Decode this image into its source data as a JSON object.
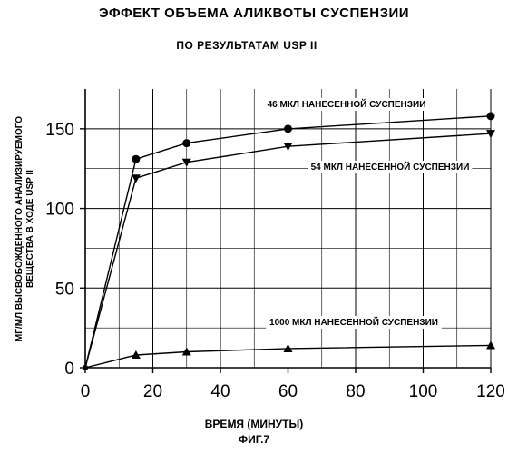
{
  "chart_data": {
    "type": "line",
    "title": "ЭФФЕКТ ОБЪЕМА АЛИКВОТЫ СУСПЕНЗИИ",
    "subtitle": "ПО РЕЗУЛЬТАТАМ USP II",
    "xlabel": "ВРЕМЯ (МИНУТЫ)",
    "ylabel_lines": [
      "МГ/МЛ ВЫСВОБОЖДЕННОГО АНАЛИЗИРУЕМОГО",
      "ВЕЩЕСТВА В ХОДЕ USP II"
    ],
    "figure_label": "ФИГ.7",
    "xlim": [
      0,
      120
    ],
    "ylim": [
      0,
      175
    ],
    "x_ticks": [
      0,
      20,
      40,
      60,
      80,
      100,
      120
    ],
    "y_ticks": [
      0,
      50,
      100,
      150
    ],
    "grid": true,
    "series": [
      {
        "name": "46 МКЛ НАНЕСЕННОЙ СУСПЕНЗИИ",
        "marker": "circle",
        "x": [
          0,
          15,
          30,
          60,
          120
        ],
        "y": [
          0,
          131,
          141,
          150,
          158
        ]
      },
      {
        "name": "54 МКЛ НАНЕСЕННОЙ СУСПЕНЗИИ",
        "marker": "triangle-down",
        "x": [
          0,
          15,
          30,
          60,
          120
        ],
        "y": [
          0,
          119,
          129,
          139,
          147
        ]
      },
      {
        "name": "1000 МКЛ НАНЕСЕННОЙ СУСПЕНЗИИ",
        "marker": "triangle-up",
        "x": [
          0,
          15,
          30,
          60,
          120
        ],
        "y": [
          0,
          8,
          10,
          12,
          14
        ]
      }
    ]
  }
}
